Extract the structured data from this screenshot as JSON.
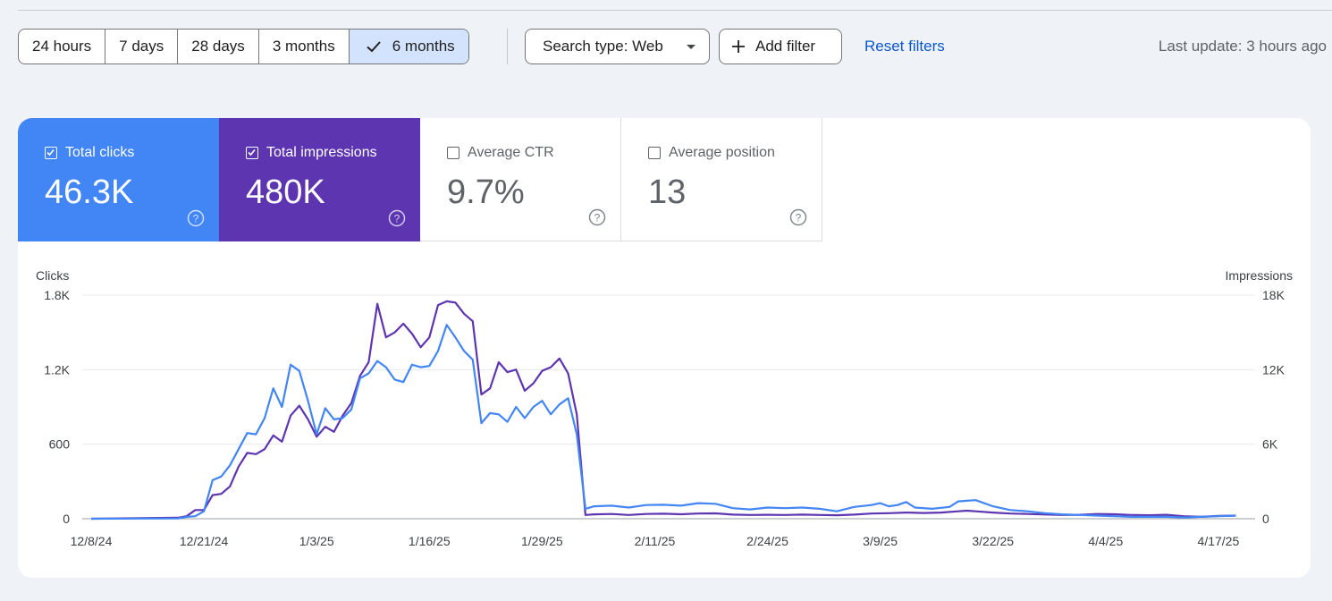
{
  "filters": {
    "ranges": [
      "24 hours",
      "7 days",
      "28 days",
      "3 months",
      "6 months"
    ],
    "selected_range": "6 months",
    "search_type": "Search type: Web",
    "add_filter": "Add filter",
    "reset": "Reset filters",
    "last_update": "Last update: 3 hours ago"
  },
  "metrics": {
    "clicks": {
      "label": "Total clicks",
      "value": "46.3K",
      "checked": true
    },
    "impressions": {
      "label": "Total impressions",
      "value": "480K",
      "checked": true
    },
    "ctr": {
      "label": "Average CTR",
      "value": "9.7%",
      "checked": false
    },
    "position": {
      "label": "Average position",
      "value": "13",
      "checked": false
    }
  },
  "colors": {
    "clicks": "#4285f4",
    "impressions": "#5e35b1"
  },
  "chart_data": {
    "type": "line",
    "left_axis_title": "Clicks",
    "right_axis_title": "Impressions",
    "left_ticks": [
      {
        "value": 0,
        "label": "0"
      },
      {
        "value": 600,
        "label": "600"
      },
      {
        "value": 1200,
        "label": "1.2K"
      },
      {
        "value": 1800,
        "label": "1.8K"
      }
    ],
    "right_ticks": [
      {
        "value": 0,
        "label": "0"
      },
      {
        "value": 6000,
        "label": "6K"
      },
      {
        "value": 12000,
        "label": "12K"
      },
      {
        "value": 18000,
        "label": "18K"
      }
    ],
    "ylim_left": [
      0,
      1800
    ],
    "ylim_right": [
      0,
      18000
    ],
    "x_labels": [
      {
        "day": 0,
        "label": "12/8/24"
      },
      {
        "day": 13,
        "label": "12/21/24"
      },
      {
        "day": 26,
        "label": "1/3/25"
      },
      {
        "day": 39,
        "label": "1/16/25"
      },
      {
        "day": 52,
        "label": "1/29/25"
      },
      {
        "day": 65,
        "label": "2/11/25"
      },
      {
        "day": 78,
        "label": "2/24/25"
      },
      {
        "day": 91,
        "label": "3/9/25"
      },
      {
        "day": 104,
        "label": "3/22/25"
      },
      {
        "day": 117,
        "label": "4/4/25"
      },
      {
        "day": 130,
        "label": "4/17/25"
      }
    ],
    "x_range": [
      0,
      133
    ],
    "series": [
      {
        "name": "Clicks",
        "axis": "left",
        "color": "#4285f4",
        "values": [
          {
            "day": 0,
            "v": 0
          },
          {
            "day": 10,
            "v": 2
          },
          {
            "day": 11,
            "v": 15
          },
          {
            "day": 12,
            "v": 20
          },
          {
            "day": 13,
            "v": 60
          },
          {
            "day": 14,
            "v": 310
          },
          {
            "day": 15,
            "v": 340
          },
          {
            "day": 16,
            "v": 430
          },
          {
            "day": 17,
            "v": 560
          },
          {
            "day": 18,
            "v": 690
          },
          {
            "day": 19,
            "v": 680
          },
          {
            "day": 20,
            "v": 810
          },
          {
            "day": 21,
            "v": 1050
          },
          {
            "day": 22,
            "v": 900
          },
          {
            "day": 23,
            "v": 1240
          },
          {
            "day": 24,
            "v": 1190
          },
          {
            "day": 25,
            "v": 950
          },
          {
            "day": 26,
            "v": 680
          },
          {
            "day": 27,
            "v": 890
          },
          {
            "day": 28,
            "v": 800
          },
          {
            "day": 29,
            "v": 810
          },
          {
            "day": 30,
            "v": 880
          },
          {
            "day": 31,
            "v": 1130
          },
          {
            "day": 32,
            "v": 1170
          },
          {
            "day": 33,
            "v": 1270
          },
          {
            "day": 34,
            "v": 1220
          },
          {
            "day": 35,
            "v": 1120
          },
          {
            "day": 36,
            "v": 1100
          },
          {
            "day": 37,
            "v": 1240
          },
          {
            "day": 38,
            "v": 1220
          },
          {
            "day": 39,
            "v": 1230
          },
          {
            "day": 40,
            "v": 1350
          },
          {
            "day": 41,
            "v": 1560
          },
          {
            "day": 42,
            "v": 1460
          },
          {
            "day": 43,
            "v": 1350
          },
          {
            "day": 44,
            "v": 1280
          },
          {
            "day": 45,
            "v": 770
          },
          {
            "day": 46,
            "v": 850
          },
          {
            "day": 47,
            "v": 840
          },
          {
            "day": 48,
            "v": 780
          },
          {
            "day": 49,
            "v": 900
          },
          {
            "day": 50,
            "v": 810
          },
          {
            "day": 51,
            "v": 900
          },
          {
            "day": 52,
            "v": 950
          },
          {
            "day": 53,
            "v": 840
          },
          {
            "day": 54,
            "v": 920
          },
          {
            "day": 55,
            "v": 970
          },
          {
            "day": 56,
            "v": 680
          },
          {
            "day": 57,
            "v": 80
          },
          {
            "day": 58,
            "v": 100
          },
          {
            "day": 60,
            "v": 105
          },
          {
            "day": 62,
            "v": 90
          },
          {
            "day": 64,
            "v": 110
          },
          {
            "day": 66,
            "v": 112
          },
          {
            "day": 68,
            "v": 105
          },
          {
            "day": 70,
            "v": 125
          },
          {
            "day": 72,
            "v": 120
          },
          {
            "day": 74,
            "v": 85
          },
          {
            "day": 76,
            "v": 75
          },
          {
            "day": 78,
            "v": 90
          },
          {
            "day": 80,
            "v": 85
          },
          {
            "day": 82,
            "v": 90
          },
          {
            "day": 84,
            "v": 80
          },
          {
            "day": 86,
            "v": 60
          },
          {
            "day": 88,
            "v": 95
          },
          {
            "day": 90,
            "v": 110
          },
          {
            "day": 91,
            "v": 125
          },
          {
            "day": 92,
            "v": 100
          },
          {
            "day": 93,
            "v": 110
          },
          {
            "day": 94,
            "v": 135
          },
          {
            "day": 95,
            "v": 90
          },
          {
            "day": 97,
            "v": 80
          },
          {
            "day": 99,
            "v": 95
          },
          {
            "day": 100,
            "v": 140
          },
          {
            "day": 101,
            "v": 145
          },
          {
            "day": 102,
            "v": 150
          },
          {
            "day": 104,
            "v": 100
          },
          {
            "day": 106,
            "v": 70
          },
          {
            "day": 108,
            "v": 60
          },
          {
            "day": 110,
            "v": 45
          },
          {
            "day": 112,
            "v": 35
          },
          {
            "day": 114,
            "v": 30
          },
          {
            "day": 116,
            "v": 25
          },
          {
            "day": 118,
            "v": 20
          },
          {
            "day": 120,
            "v": 15
          },
          {
            "day": 122,
            "v": 15
          },
          {
            "day": 124,
            "v": 15
          },
          {
            "day": 126,
            "v": 10
          },
          {
            "day": 128,
            "v": 15
          },
          {
            "day": 130,
            "v": 20
          },
          {
            "day": 132,
            "v": 25
          }
        ]
      },
      {
        "name": "Impressions",
        "axis": "right",
        "color": "#5e35b1",
        "values": [
          {
            "day": 0,
            "v": 0
          },
          {
            "day": 10,
            "v": 80
          },
          {
            "day": 11,
            "v": 200
          },
          {
            "day": 12,
            "v": 700
          },
          {
            "day": 13,
            "v": 700
          },
          {
            "day": 14,
            "v": 1900
          },
          {
            "day": 15,
            "v": 2000
          },
          {
            "day": 16,
            "v": 2600
          },
          {
            "day": 17,
            "v": 4200
          },
          {
            "day": 18,
            "v": 5300
          },
          {
            "day": 19,
            "v": 5200
          },
          {
            "day": 20,
            "v": 5600
          },
          {
            "day": 21,
            "v": 6700
          },
          {
            "day": 22,
            "v": 6200
          },
          {
            "day": 23,
            "v": 8300
          },
          {
            "day": 24,
            "v": 9100
          },
          {
            "day": 25,
            "v": 8000
          },
          {
            "day": 26,
            "v": 6600
          },
          {
            "day": 27,
            "v": 7400
          },
          {
            "day": 28,
            "v": 7000
          },
          {
            "day": 29,
            "v": 8300
          },
          {
            "day": 30,
            "v": 9300
          },
          {
            "day": 31,
            "v": 11500
          },
          {
            "day": 32,
            "v": 12600
          },
          {
            "day": 33,
            "v": 17300
          },
          {
            "day": 34,
            "v": 14600
          },
          {
            "day": 35,
            "v": 15000
          },
          {
            "day": 36,
            "v": 15700
          },
          {
            "day": 37,
            "v": 14900
          },
          {
            "day": 38,
            "v": 13800
          },
          {
            "day": 39,
            "v": 14600
          },
          {
            "day": 40,
            "v": 17200
          },
          {
            "day": 41,
            "v": 17500
          },
          {
            "day": 42,
            "v": 17400
          },
          {
            "day": 43,
            "v": 16500
          },
          {
            "day": 44,
            "v": 15900
          },
          {
            "day": 45,
            "v": 10000
          },
          {
            "day": 46,
            "v": 10500
          },
          {
            "day": 47,
            "v": 12600
          },
          {
            "day": 48,
            "v": 11800
          },
          {
            "day": 49,
            "v": 12000
          },
          {
            "day": 50,
            "v": 10300
          },
          {
            "day": 51,
            "v": 10900
          },
          {
            "day": 52,
            "v": 11900
          },
          {
            "day": 53,
            "v": 12200
          },
          {
            "day": 54,
            "v": 12900
          },
          {
            "day": 55,
            "v": 11700
          },
          {
            "day": 56,
            "v": 8400
          },
          {
            "day": 57,
            "v": 300
          },
          {
            "day": 58,
            "v": 350
          },
          {
            "day": 60,
            "v": 380
          },
          {
            "day": 62,
            "v": 300
          },
          {
            "day": 64,
            "v": 380
          },
          {
            "day": 66,
            "v": 400
          },
          {
            "day": 68,
            "v": 360
          },
          {
            "day": 70,
            "v": 420
          },
          {
            "day": 72,
            "v": 430
          },
          {
            "day": 74,
            "v": 330
          },
          {
            "day": 76,
            "v": 300
          },
          {
            "day": 78,
            "v": 320
          },
          {
            "day": 80,
            "v": 300
          },
          {
            "day": 82,
            "v": 330
          },
          {
            "day": 84,
            "v": 300
          },
          {
            "day": 86,
            "v": 280
          },
          {
            "day": 88,
            "v": 330
          },
          {
            "day": 90,
            "v": 420
          },
          {
            "day": 92,
            "v": 450
          },
          {
            "day": 94,
            "v": 500
          },
          {
            "day": 96,
            "v": 460
          },
          {
            "day": 98,
            "v": 500
          },
          {
            "day": 100,
            "v": 600
          },
          {
            "day": 101,
            "v": 650
          },
          {
            "day": 102,
            "v": 600
          },
          {
            "day": 104,
            "v": 500
          },
          {
            "day": 106,
            "v": 420
          },
          {
            "day": 108,
            "v": 380
          },
          {
            "day": 110,
            "v": 340
          },
          {
            "day": 112,
            "v": 300
          },
          {
            "day": 114,
            "v": 320
          },
          {
            "day": 116,
            "v": 380
          },
          {
            "day": 118,
            "v": 360
          },
          {
            "day": 120,
            "v": 300
          },
          {
            "day": 122,
            "v": 280
          },
          {
            "day": 124,
            "v": 320
          },
          {
            "day": 126,
            "v": 200
          },
          {
            "day": 128,
            "v": 150
          },
          {
            "day": 130,
            "v": 220
          },
          {
            "day": 132,
            "v": 250
          }
        ]
      }
    ]
  }
}
